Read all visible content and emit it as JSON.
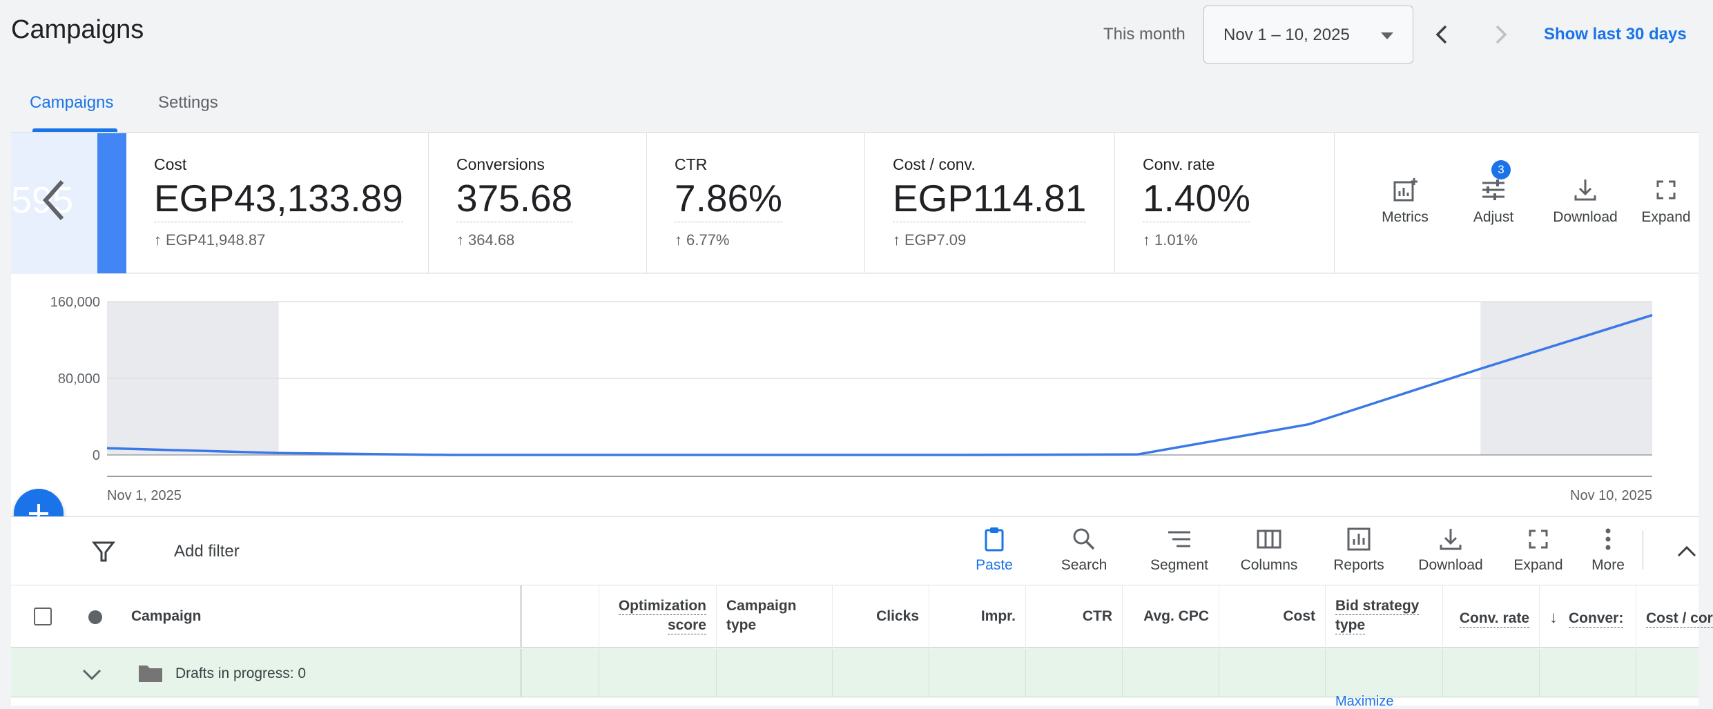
{
  "header": {
    "title": "Campaigns",
    "range_label": "This month",
    "date_range": "Nov 1 – 10, 2025",
    "show_last_link": "Show last 30 days"
  },
  "tabs": [
    {
      "label": "Campaigns",
      "active": true
    },
    {
      "label": "Settings",
      "active": false
    }
  ],
  "scorecards": {
    "prev_ghost": "595",
    "cards": [
      {
        "label": "Cost",
        "value": "EGP43,133.89",
        "delta": "EGP41,948.87"
      },
      {
        "label": "Conversions",
        "value": "375.68",
        "delta": "364.68"
      },
      {
        "label": "CTR",
        "value": "7.86%",
        "delta": "6.77%"
      },
      {
        "label": "Cost / conv.",
        "value": "EGP114.81",
        "delta": "EGP7.09"
      },
      {
        "label": "Conv. rate",
        "value": "1.40%",
        "delta": "1.01%"
      }
    ],
    "tools": [
      {
        "label": "Metrics",
        "icon": "metrics-add-icon"
      },
      {
        "label": "Adjust",
        "icon": "tune-icon"
      },
      {
        "label": "Download",
        "icon": "download-icon"
      },
      {
        "label": "Expand",
        "icon": "expand-icon"
      }
    ],
    "adjust_badge": "3"
  },
  "chart_data": {
    "type": "line",
    "x": [
      "Nov 1, 2025",
      "Nov 2, 2025",
      "Nov 3, 2025",
      "Nov 4, 2025",
      "Nov 5, 2025",
      "Nov 6, 2025",
      "Nov 7, 2025",
      "Nov 8, 2025",
      "Nov 9, 2025",
      "Nov 10, 2025"
    ],
    "x_tick_labels": [
      "Nov 1, 2025",
      "Nov 10, 2025"
    ],
    "y_ticks": [
      "160,000",
      "80,000",
      "0"
    ],
    "ylim": [
      0,
      160000
    ],
    "series": [
      {
        "values": [
          7000,
          2000,
          0,
          0,
          0,
          0,
          500,
          32000,
          90000,
          146000
        ],
        "color": "#3b78e7"
      }
    ],
    "shaded_days": [
      "Nov 1, 2025",
      "Nov 9, 2025"
    ],
    "grid": true
  },
  "table_toolbar": {
    "add_filter": "Add filter",
    "tools": [
      {
        "label": "Paste",
        "icon": "paste-icon",
        "active": true
      },
      {
        "label": "Search",
        "icon": "search-icon"
      },
      {
        "label": "Segment",
        "icon": "segment-icon"
      },
      {
        "label": "Columns",
        "icon": "columns-icon"
      },
      {
        "label": "Reports",
        "icon": "reports-icon"
      },
      {
        "label": "Download",
        "icon": "download-icon"
      },
      {
        "label": "Expand",
        "icon": "expand-icon"
      },
      {
        "label": "More",
        "icon": "more-vert-icon"
      }
    ]
  },
  "table": {
    "columns": {
      "campaign": "Campaign",
      "opt_score_1": "Optimization",
      "opt_score_2": "score",
      "type_1": "Campaign",
      "type_2": "type",
      "clicks": "Clicks",
      "impr": "Impr.",
      "ctr": "CTR",
      "avg_cpc": "Avg. CPC",
      "cost": "Cost",
      "bid_1": "Bid strategy",
      "bid_2": "type",
      "conv_rate": "Conv. rate",
      "conversions": "Conver:",
      "cost_per_conv": "Cost / cor"
    },
    "draft_row": "Drafts in progress: 0",
    "next_row_partial": "Maximize"
  }
}
